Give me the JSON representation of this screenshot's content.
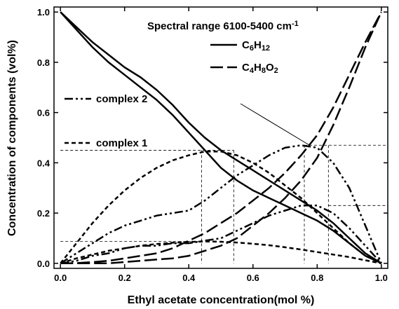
{
  "chart_data": {
    "type": "line",
    "title": "Spectral range 6100-5400 cm-1",
    "x_label": "Ethyl acetate concentration(mol %)",
    "y_label": "Concentration of components (vol%)",
    "xlim": [
      -0.02,
      1.02
    ],
    "ylim": [
      -0.02,
      1.02
    ],
    "xticks": [
      {
        "value": 0,
        "label": "0.0"
      },
      0.2,
      0.4,
      0.6,
      0.8,
      {
        "value": 1,
        "label": "1.0"
      }
    ],
    "yticks": [
      {
        "value": 0,
        "label": "0.0"
      },
      0.2,
      0.4,
      0.6,
      0.8,
      {
        "value": 1,
        "label": "1.0"
      }
    ],
    "x": [
      0,
      0.05,
      0.1,
      0.15,
      0.2,
      0.25,
      0.3,
      0.35,
      0.4,
      0.45,
      0.5,
      0.55,
      0.6,
      0.65,
      0.7,
      0.75,
      0.8,
      0.85,
      0.9,
      0.95,
      1
    ],
    "series": [
      {
        "name": "C6H12",
        "color": "#000000",
        "dash": "solid",
        "lines": [
          [
            1.0,
            0.94,
            0.88,
            0.83,
            0.78,
            0.74,
            0.69,
            0.63,
            0.56,
            0.5,
            0.45,
            0.41,
            0.37,
            0.33,
            0.29,
            0.25,
            0.21,
            0.16,
            0.1,
            0.04,
            0.0
          ],
          [
            1.0,
            0.93,
            0.86,
            0.8,
            0.75,
            0.7,
            0.65,
            0.59,
            0.52,
            0.45,
            0.38,
            0.33,
            0.29,
            0.26,
            0.23,
            0.2,
            0.17,
            0.13,
            0.08,
            0.03,
            0.0
          ]
        ]
      },
      {
        "name": "C4H8O2",
        "color": "#000000",
        "dash": "long-dash",
        "lines": [
          [
            0,
            0.001,
            0.005,
            0.01,
            0.02,
            0.03,
            0.04,
            0.06,
            0.09,
            0.12,
            0.16,
            0.2,
            0.25,
            0.3,
            0.36,
            0.43,
            0.51,
            0.62,
            0.75,
            0.88,
            1.0
          ],
          [
            0,
            0,
            0,
            0,
            0.005,
            0.01,
            0.015,
            0.02,
            0.03,
            0.05,
            0.07,
            0.1,
            0.15,
            0.2,
            0.26,
            0.33,
            0.42,
            0.55,
            0.7,
            0.86,
            1.0
          ]
        ]
      },
      {
        "name": "complex 2",
        "color": "#000000",
        "dash": "dash-dot-dot",
        "lines": [
          [
            0,
            0.04,
            0.08,
            0.12,
            0.15,
            0.17,
            0.19,
            0.2,
            0.21,
            0.25,
            0.3,
            0.35,
            0.39,
            0.43,
            0.46,
            0.47,
            0.46,
            0.4,
            0.3,
            0.15,
            0.0
          ],
          [
            0,
            0.01,
            0.03,
            0.04,
            0.06,
            0.07,
            0.07,
            0.08,
            0.08,
            0.09,
            0.1,
            0.13,
            0.16,
            0.19,
            0.21,
            0.23,
            0.23,
            0.2,
            0.14,
            0.07,
            0.0
          ]
        ]
      },
      {
        "name": "complex 1",
        "color": "#000000",
        "dash": "short-dash",
        "lines": [
          [
            0,
            0.08,
            0.16,
            0.23,
            0.29,
            0.34,
            0.38,
            0.41,
            0.43,
            0.445,
            0.445,
            0.43,
            0.4,
            0.36,
            0.31,
            0.26,
            0.2,
            0.14,
            0.08,
            0.03,
            0
          ],
          [
            0,
            0.02,
            0.035,
            0.05,
            0.06,
            0.07,
            0.077,
            0.082,
            0.085,
            0.087,
            0.086,
            0.083,
            0.078,
            0.072,
            0.064,
            0.055,
            0.045,
            0.035,
            0.025,
            0.012,
            0
          ]
        ]
      }
    ],
    "reference_lines": [
      {
        "x": [
          0,
          0.54
        ],
        "y": [
          0.45,
          0.45
        ]
      },
      {
        "x": [
          0.44,
          0.44
        ],
        "y": [
          0.45,
          0
        ]
      },
      {
        "x": [
          0.54,
          0.54
        ],
        "y": [
          0.45,
          0
        ]
      },
      {
        "x": [
          0,
          0.44
        ],
        "y": [
          0.087,
          0.087
        ]
      },
      {
        "x": [
          0.76,
          1.02
        ],
        "y": [
          0.47,
          0.47
        ]
      },
      {
        "x": [
          0.76,
          0.76
        ],
        "y": [
          0.47,
          0
        ]
      },
      {
        "x": [
          0.835,
          0.835
        ],
        "y": [
          0.47,
          0
        ]
      },
      {
        "x": [
          0.835,
          1.02
        ],
        "y": [
          0.23,
          0.23
        ]
      }
    ]
  }
}
